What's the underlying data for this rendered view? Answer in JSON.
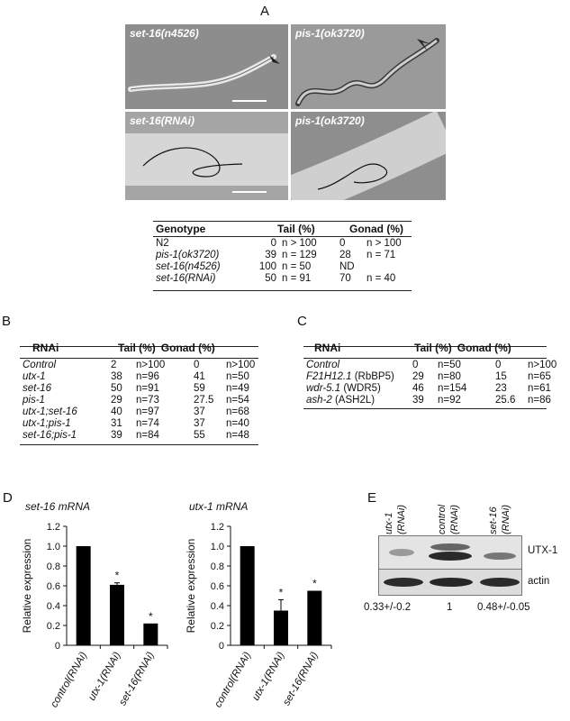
{
  "panel_a": {
    "letter": "A",
    "images": [
      {
        "label": "set-16(n4526)"
      },
      {
        "label": "pis-1(ok3720)"
      },
      {
        "label": "set-16(RNAi)"
      },
      {
        "label": "pis-1(ok3720)"
      }
    ],
    "table": {
      "headers": [
        "Genotype",
        "Tail (%)",
        "Gonad (%)"
      ],
      "rows": [
        {
          "genotype": "N2",
          "tail_pct": "0",
          "tail_n": "n > 100",
          "gonad_pct": "0",
          "gonad_n": "n > 100"
        },
        {
          "genotype": "pis-1(ok3720)",
          "tail_pct": "39",
          "tail_n": "n = 129",
          "gonad_pct": "28",
          "gonad_n": "n = 71"
        },
        {
          "genotype": "set-16(n4526)",
          "tail_pct": "100",
          "tail_n": "n = 50",
          "gonad_pct": "ND",
          "gonad_n": ""
        },
        {
          "genotype": "set-16(RNAi)",
          "tail_pct": "50",
          "tail_n": "n = 91",
          "gonad_pct": "70",
          "gonad_n": "n = 40"
        }
      ]
    }
  },
  "panel_b": {
    "letter": "B",
    "headers": [
      "RNAi",
      "Tail (%)",
      "Gonad (%)"
    ],
    "rows": [
      {
        "rnai": "Control",
        "tail_pct": "2",
        "tail_n": "n>100",
        "gonad_pct": "0",
        "gonad_n": "n>100"
      },
      {
        "rnai": "utx-1",
        "tail_pct": "38",
        "tail_n": "n=96",
        "gonad_pct": "41",
        "gonad_n": "n=50"
      },
      {
        "rnai": "set-16",
        "tail_pct": "50",
        "tail_n": "n=91",
        "gonad_pct": "59",
        "gonad_n": "n=49"
      },
      {
        "rnai": "pis-1",
        "tail_pct": "29",
        "tail_n": "n=73",
        "gonad_pct": "27.5",
        "gonad_n": "n=54"
      },
      {
        "rnai": "utx-1;set-16",
        "tail_pct": "40",
        "tail_n": "n=97",
        "gonad_pct": "37",
        "gonad_n": "n=68"
      },
      {
        "rnai": "utx-1;pis-1",
        "tail_pct": "31",
        "tail_n": "n=74",
        "gonad_pct": "37",
        "gonad_n": "n=40"
      },
      {
        "rnai": "set-16;pis-1",
        "tail_pct": "39",
        "tail_n": "n=84",
        "gonad_pct": "55",
        "gonad_n": "n=48"
      }
    ]
  },
  "panel_c": {
    "letter": "C",
    "headers": [
      "RNAi",
      "Tail (%)",
      "Gonad (%)"
    ],
    "rows": [
      {
        "rnai": "Control",
        "suffix": "",
        "tail_pct": "0",
        "tail_n": "n=50",
        "gonad_pct": "0",
        "gonad_n": "n>100"
      },
      {
        "rnai": "F21H12.1",
        "suffix": " (RbBP5)",
        "tail_pct": "29",
        "tail_n": "n=80",
        "gonad_pct": "15",
        "gonad_n": "n=65"
      },
      {
        "rnai": "wdr-5.1",
        "suffix": " (WDR5)",
        "tail_pct": "46",
        "tail_n": "n=154",
        "gonad_pct": "23",
        "gonad_n": "n=61"
      },
      {
        "rnai": "ash-2",
        "suffix": " (ASH2L)",
        "tail_pct": "39",
        "tail_n": "n=92",
        "gonad_pct": "25.6",
        "gonad_n": "n=86"
      }
    ]
  },
  "panel_d": {
    "letter": "D"
  },
  "chart_data": [
    {
      "type": "bar",
      "title": "set-16 mRNA",
      "ylabel": "Relative expression",
      "xlabel": "",
      "categories": [
        "control(RNAi)",
        "utx-1(RNAi)",
        "set-16(RNAi)"
      ],
      "values": [
        1.0,
        0.61,
        0.22
      ],
      "errors": [
        0.0,
        0.02,
        0.0
      ],
      "significance": [
        "",
        "*",
        "*"
      ],
      "ylim": [
        0,
        1.2
      ],
      "yticks": [
        "0",
        "0.2",
        "0.4",
        "0.6",
        "0.8",
        "1.0",
        "1.2"
      ],
      "grid": false
    },
    {
      "type": "bar",
      "title": "utx-1 mRNA",
      "ylabel": "Relative expression",
      "xlabel": "",
      "categories": [
        "control(RNAi)",
        "utx-1(RNAi)",
        "set-16(RNAi)"
      ],
      "values": [
        1.0,
        0.35,
        0.55
      ],
      "errors": [
        0.0,
        0.11,
        0.0
      ],
      "significance": [
        "",
        "*",
        "*"
      ],
      "ylim": [
        0,
        1.2
      ],
      "yticks": [
        "0",
        "0.2",
        "0.4",
        "0.6",
        "0.8",
        "1.0",
        "1.2"
      ],
      "grid": false
    }
  ],
  "panel_e": {
    "letter": "E",
    "lanes": [
      {
        "top": "utx-1",
        "bottom": "(RNAi)",
        "ratio": "0.33+/-0.2"
      },
      {
        "top": "control",
        "bottom": "(RNAi)",
        "ratio": "1"
      },
      {
        "top": "set-16",
        "bottom": "(RNAi)",
        "ratio": "0.48+/-0.05"
      }
    ],
    "bands": [
      "UTX-1",
      "actin"
    ]
  }
}
